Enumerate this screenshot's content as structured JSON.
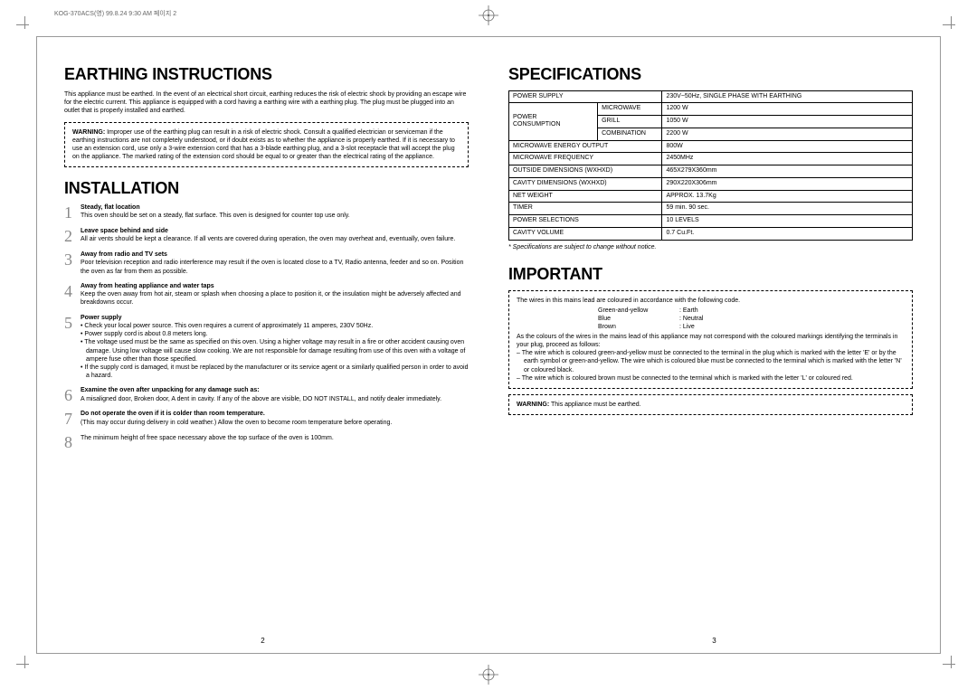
{
  "header_slug": "KOG-370ACS(영)  99.8.24 9:30 AM  페이지 2",
  "left": {
    "h_earth": "Earthing Instructions",
    "earth_intro": "This appliance must be earthed. In the event of an electrical short circuit, earthing reduces the risk of electric shock by providing an escape wire for the electric current. This appliance is equipped with a cord having a earthing wire with a earthing plug. The plug must be plugged into an outlet that is properly installed and earthed.",
    "warning_label": "WARNING:",
    "earth_warning": " Improper use of the earthing plug can result in a risk of electric shock. Consult a qualified electrician or serviceman if the earthing instructions are not completely understood, or if doubt exists as to whether the appliance is properly earthed. If it is necessary to use an extension cord, use only a 3-wire extension cord that has a 3-blade earthing plug, and a 3-slot receptacle that will accept the plug on the appliance. The marked rating of the extension cord should be equal to or greater than the electrical rating of the appliance.",
    "h_install": "Installation",
    "items": [
      {
        "n": "1",
        "title": "Steady, flat location",
        "text": "This oven should be set on a steady, flat surface. This oven is designed for counter top use only."
      },
      {
        "n": "2",
        "title": "Leave space behind and side",
        "text": "All air vents should be kept a clearance. If all vents are covered during operation, the oven may overheat and, eventually, oven failure."
      },
      {
        "n": "3",
        "title": "Away from radio and TV sets",
        "text": "Poor television reception and radio interference may result if the oven is located close to a TV, Radio antenna, feeder and so on.\nPosition the oven as far from them as possible."
      },
      {
        "n": "4",
        "title": "Away from heating appliance and water taps",
        "text": "Keep the oven away from hot air, steam or splash when choosing a place to position it, or the insulation might be adversely affected and breakdowns occur."
      },
      {
        "n": "5",
        "title": "Power supply",
        "bullets": [
          "Check your local power source. This oven requires a current of approximately 11 amperes, 230V 50Hz.",
          "Power supply cord is about 0.8 meters long.",
          "The voltage used must be the same as specified on this oven. Using a higher voltage may result in a fire or other accident causing oven damage. Using low voltage will cause slow cooking. We are not responsible for damage resulting from use of this oven with a voltage of ampere fuse other than those specified.",
          "If the supply cord is damaged, it must be replaced by the manufacturer or its service agent or a similarly qualified person in order to avoid a hazard."
        ]
      },
      {
        "n": "6",
        "title": "Examine the oven after unpacking for any damage such as:",
        "text": "A misaligned door, Broken door, A dent in cavity. If any of the above are visible, DO NOT INSTALL, and notify dealer immediately."
      },
      {
        "n": "7",
        "title": "Do not operate the oven if it is colder than room temperature.",
        "text": "(This may occur during delivery in cold weather.) Allow the oven to become room temperature before operating."
      },
      {
        "n": "8",
        "title": "",
        "text": "The minimum height of free space necessary above the top surface of the oven is 100mm."
      }
    ],
    "pagenum": "2"
  },
  "right": {
    "h_spec": "Specifications",
    "spec_rows": [
      [
        "POWER SUPPLY",
        "",
        "230V~50Hz, SINGLE PHASE WITH EARTHING"
      ],
      [
        "POWER\nCONSUMPTION",
        "MICROWAVE",
        "1200 W"
      ],
      [
        "",
        "GRILL",
        "1050 W"
      ],
      [
        "",
        "COMBINATION",
        "2200 W"
      ],
      [
        "MICROWAVE ENERGY OUTPUT",
        "",
        "800W"
      ],
      [
        "MICROWAVE FREQUENCY",
        "",
        "2450MHz"
      ],
      [
        "OUTSIDE DIMENSIONS (WXHXD)",
        "",
        "465X279X360mm"
      ],
      [
        "CAVITY DIMENSIONS (WXHXD)",
        "",
        "290X220X306mm"
      ],
      [
        "NET WEIGHT",
        "",
        "APPROX. 13.7Kg"
      ],
      [
        "TIMER",
        "",
        "59 min. 90 sec."
      ],
      [
        "POWER SELECTIONS",
        "",
        "10 LEVELS"
      ],
      [
        "CAVITY VOLUME",
        "",
        "0.7 Cu.Ft."
      ]
    ],
    "spec_note": "* Specifications are subject to change without notice.",
    "h_important": "Important",
    "imp_line1": "The wires in this mains lead are coloured in accordance with the following code.",
    "wires": [
      [
        "Green-and-yellow",
        ": Earth"
      ],
      [
        "Blue",
        ": Neutral"
      ],
      [
        "Brown",
        ": Live"
      ]
    ],
    "imp_para": "As the colours of the wires in the mains lead of this appliance may not correspond with the coloured markings identifying the terminals in your plug, proceed as follows:",
    "imp_bullets": [
      "The wire which is coloured green-and-yellow must be connected to the terminal in the plug which is marked with the letter 'E' or by the earth symbol or green-and-yellow. The wire which is coloured blue must be connected to the terminal which is marked with the letter 'N' or coloured black.",
      "The wire which is coloured brown must be connected to the terminal which is marked with the letter 'L' or coloured red."
    ],
    "warn2_label": "WARNING:",
    "warn2_text": " This appliance must be earthed.",
    "pagenum": "3"
  }
}
